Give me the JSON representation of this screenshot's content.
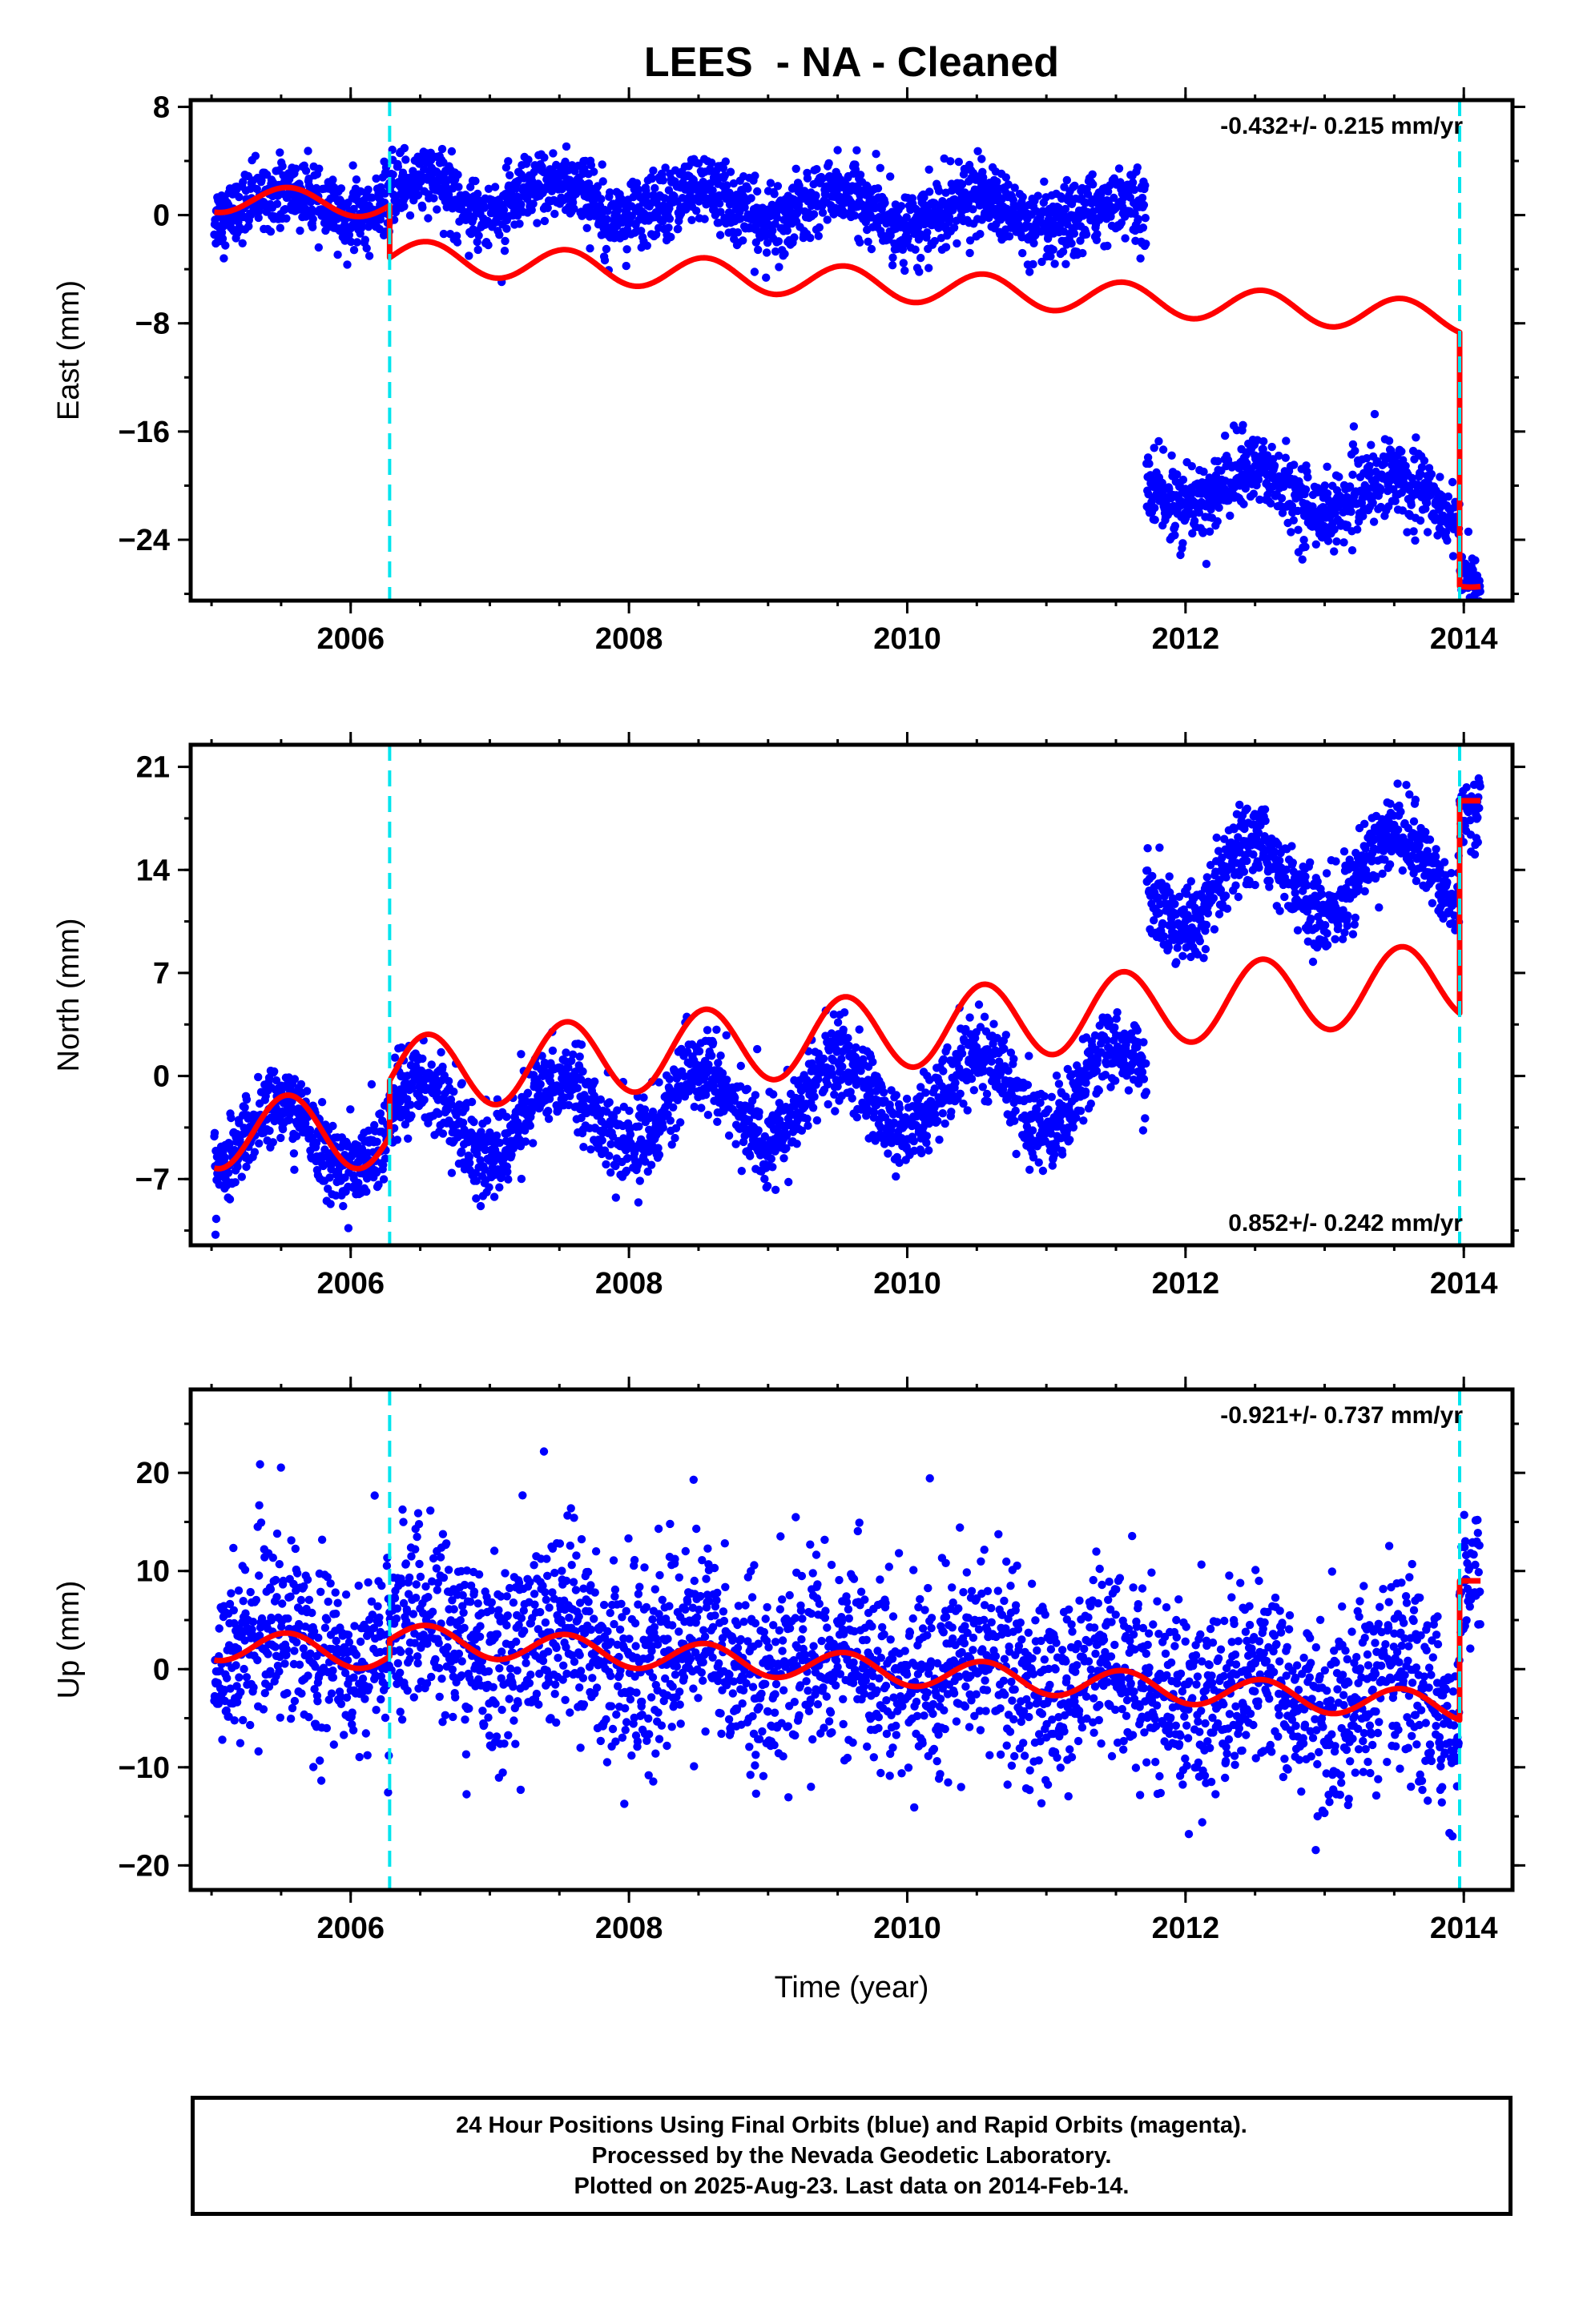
{
  "title": "LEES  - NA - Cleaned",
  "xlabel": "Time (year)",
  "colors": {
    "points": "#0000ff",
    "model": "#ff0000",
    "event_lines": "#00e5ee",
    "frame": "#000000"
  },
  "chart_data": [
    {
      "type": "scatter",
      "ylabel": "East (mm)",
      "rate": "-0.432+/- 0.215 mm/yr",
      "rate_position": "top-right",
      "xlim": [
        2004.85,
        2014.35
      ],
      "ylim": [
        -28.5,
        8.5
      ],
      "xticks": [
        2006,
        2008,
        2010,
        2012,
        2014
      ],
      "yticks": [
        8,
        0,
        -8,
        -16,
        -24
      ],
      "event_lines_x": [
        2006.28,
        2013.97
      ],
      "data_span_x": [
        2005.02,
        2014.12
      ],
      "series": [
        {
          "kind": "points",
          "segments": [
            {
              "x_range": [
                2005.02,
                2006.28
              ],
              "start_level": 0.8,
              "annual_amplitude": 1.0,
              "rate_per_year": 0.0,
              "scatter": 1.2
            },
            {
              "x_range": [
                2006.28,
                2011.72
              ],
              "start_level": 1.6,
              "annual_amplitude": 1.2,
              "rate_per_year": -0.35,
              "scatter": 1.3
            },
            {
              "x_range": [
                2011.72,
                2013.97
              ],
              "start_level": -20.0,
              "annual_amplitude": 1.5,
              "rate_per_year": -0.4,
              "scatter": 1.4
            },
            {
              "x_range": [
                2013.97,
                2014.12
              ],
              "start_level": -26.5,
              "annual_amplitude": 0.5,
              "rate_per_year": 0.0,
              "scatter": 1.0
            }
          ]
        },
        {
          "kind": "model",
          "steps": [
            {
              "x_range": [
                2005.02,
                2006.28
              ],
              "start_level": 1.2,
              "annual_amplitude": 1.0,
              "rate_per_year": -0.3
            },
            {
              "x_range": [
                2006.28,
                2013.97
              ],
              "start_level": -3.0,
              "annual_amplitude": 1.2,
              "rate_per_year": -0.6
            },
            {
              "x_range": [
                2013.97,
                2014.12
              ],
              "start_level": -27.0,
              "annual_amplitude": 0.5,
              "rate_per_year": 0.0
            }
          ]
        }
      ]
    },
    {
      "type": "scatter",
      "ylabel": "North (mm)",
      "rate": "0.852+/- 0.242 mm/yr",
      "rate_position": "bottom-right",
      "xlim": [
        2004.85,
        2014.35
      ],
      "ylim": [
        -11.5,
        22.5
      ],
      "xticks": [
        2006,
        2008,
        2010,
        2012,
        2014
      ],
      "yticks": [
        21,
        14,
        7,
        0,
        -7
      ],
      "event_lines_x": [
        2006.28,
        2013.97
      ],
      "data_span_x": [
        2005.02,
        2014.12
      ],
      "series": [
        {
          "kind": "points",
          "segments": [
            {
              "x_range": [
                2005.02,
                2006.28
              ],
              "start_level": -4.2,
              "annual_amplitude": 2.2,
              "rate_per_year": 0.0,
              "scatter": 1.3
            },
            {
              "x_range": [
                2006.28,
                2011.72
              ],
              "start_level": -3.2,
              "annual_amplitude": 2.6,
              "rate_per_year": 0.5,
              "scatter": 1.4
            },
            {
              "x_range": [
                2011.72,
                2013.97
              ],
              "start_level": 12.5,
              "annual_amplitude": 2.6,
              "rate_per_year": 0.8,
              "scatter": 1.3
            },
            {
              "x_range": [
                2013.97,
                2014.12
              ],
              "start_level": 18.5,
              "annual_amplitude": 0.5,
              "rate_per_year": 0.0,
              "scatter": 1.0
            }
          ]
        },
        {
          "kind": "model",
          "steps": [
            {
              "x_range": [
                2005.02,
                2006.28
              ],
              "start_level": -3.8,
              "annual_amplitude": 2.5,
              "rate_per_year": 0.0
            },
            {
              "x_range": [
                2006.28,
                2013.97
              ],
              "start_level": 0.0,
              "annual_amplitude": 2.6,
              "rate_per_year": 0.85
            },
            {
              "x_range": [
                2013.97,
                2014.12
              ],
              "start_level": 18.7,
              "annual_amplitude": 0.0,
              "rate_per_year": 0.0
            }
          ]
        }
      ]
    },
    {
      "type": "scatter",
      "ylabel": "Up (mm)",
      "rate": "-0.921+/- 0.737 mm/yr",
      "rate_position": "top-right",
      "xlim": [
        2004.85,
        2014.35
      ],
      "ylim": [
        -22.5,
        28.5
      ],
      "xticks": [
        2006,
        2008,
        2010,
        2012,
        2014
      ],
      "yticks": [
        20,
        10,
        0,
        -10,
        -20
      ],
      "event_lines_x": [
        2006.28,
        2013.97
      ],
      "data_span_x": [
        2005.02,
        2014.12
      ],
      "series": [
        {
          "kind": "points",
          "segments": [
            {
              "x_range": [
                2005.02,
                2006.28
              ],
              "start_level": 2.5,
              "annual_amplitude": 2.0,
              "rate_per_year": 0.0,
              "scatter": 4.5
            },
            {
              "x_range": [
                2006.28,
                2013.97
              ],
              "start_level": 3.5,
              "annual_amplitude": 2.0,
              "rate_per_year": -0.92,
              "scatter": 4.8
            },
            {
              "x_range": [
                2013.97,
                2014.12
              ],
              "start_level": 9.0,
              "annual_amplitude": 0.0,
              "rate_per_year": 0.0,
              "scatter": 3.5
            }
          ]
        },
        {
          "kind": "model",
          "steps": [
            {
              "x_range": [
                2005.02,
                2006.28
              ],
              "start_level": 2.5,
              "annual_amplitude": 1.6,
              "rate_per_year": -0.8
            },
            {
              "x_range": [
                2006.28,
                2013.97
              ],
              "start_level": 3.2,
              "annual_amplitude": 1.5,
              "rate_per_year": -0.92
            },
            {
              "x_range": [
                2013.97,
                2014.12
              ],
              "start_level": 9.0,
              "annual_amplitude": 0.0,
              "rate_per_year": 0.0
            }
          ]
        }
      ]
    }
  ],
  "footer": {
    "line1": "24 Hour Positions Using Final Orbits (blue) and Rapid Orbits (magenta).",
    "line2": "Processed by the Nevada Geodetic Laboratory.",
    "line3": "Plotted on 2025-Aug-23. Last data on 2014-Feb-14."
  }
}
